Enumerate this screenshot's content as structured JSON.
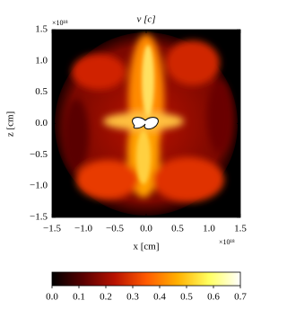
{
  "chart_data": {
    "type": "heatmap",
    "title": "v [c]",
    "xlabel": "x [cm]",
    "ylabel": "z [cm]",
    "x_offset_text": "×10¹⁸",
    "y_offset_text": "×10¹⁸",
    "xlim": [
      -1.5,
      1.5
    ],
    "ylim": [
      -1.5,
      1.5
    ],
    "xticks": [
      {
        "value": -1.5,
        "label": "−1.5"
      },
      {
        "value": -1,
        "label": "−1.0"
      },
      {
        "value": -0.5,
        "label": "−0.5"
      },
      {
        "value": 0,
        "label": "0.0"
      },
      0.5,
      {
        "value": 1,
        "label": "1.0"
      },
      1.5
    ],
    "yticks": [
      {
        "value": -1.5,
        "label": "−1.5"
      },
      {
        "value": -1,
        "label": "−1.0"
      },
      {
        "value": -0.5,
        "label": "−0.5"
      },
      {
        "value": 0,
        "label": "0.0"
      },
      0.5,
      {
        "value": 1,
        "label": "1.0"
      },
      1.5
    ],
    "colorbar": {
      "lim": [
        0,
        0.7
      ],
      "ticks": [
        {
          "value": 0,
          "label": "0.0"
        },
        0.1,
        0.2,
        0.3,
        0.4,
        0.5,
        0.6,
        0.7
      ],
      "colors": [
        "#000000",
        "#5a0000",
        "#b81200",
        "#ff5a00",
        "#ffb000",
        "#ffff60",
        "#ffffff"
      ]
    }
  }
}
